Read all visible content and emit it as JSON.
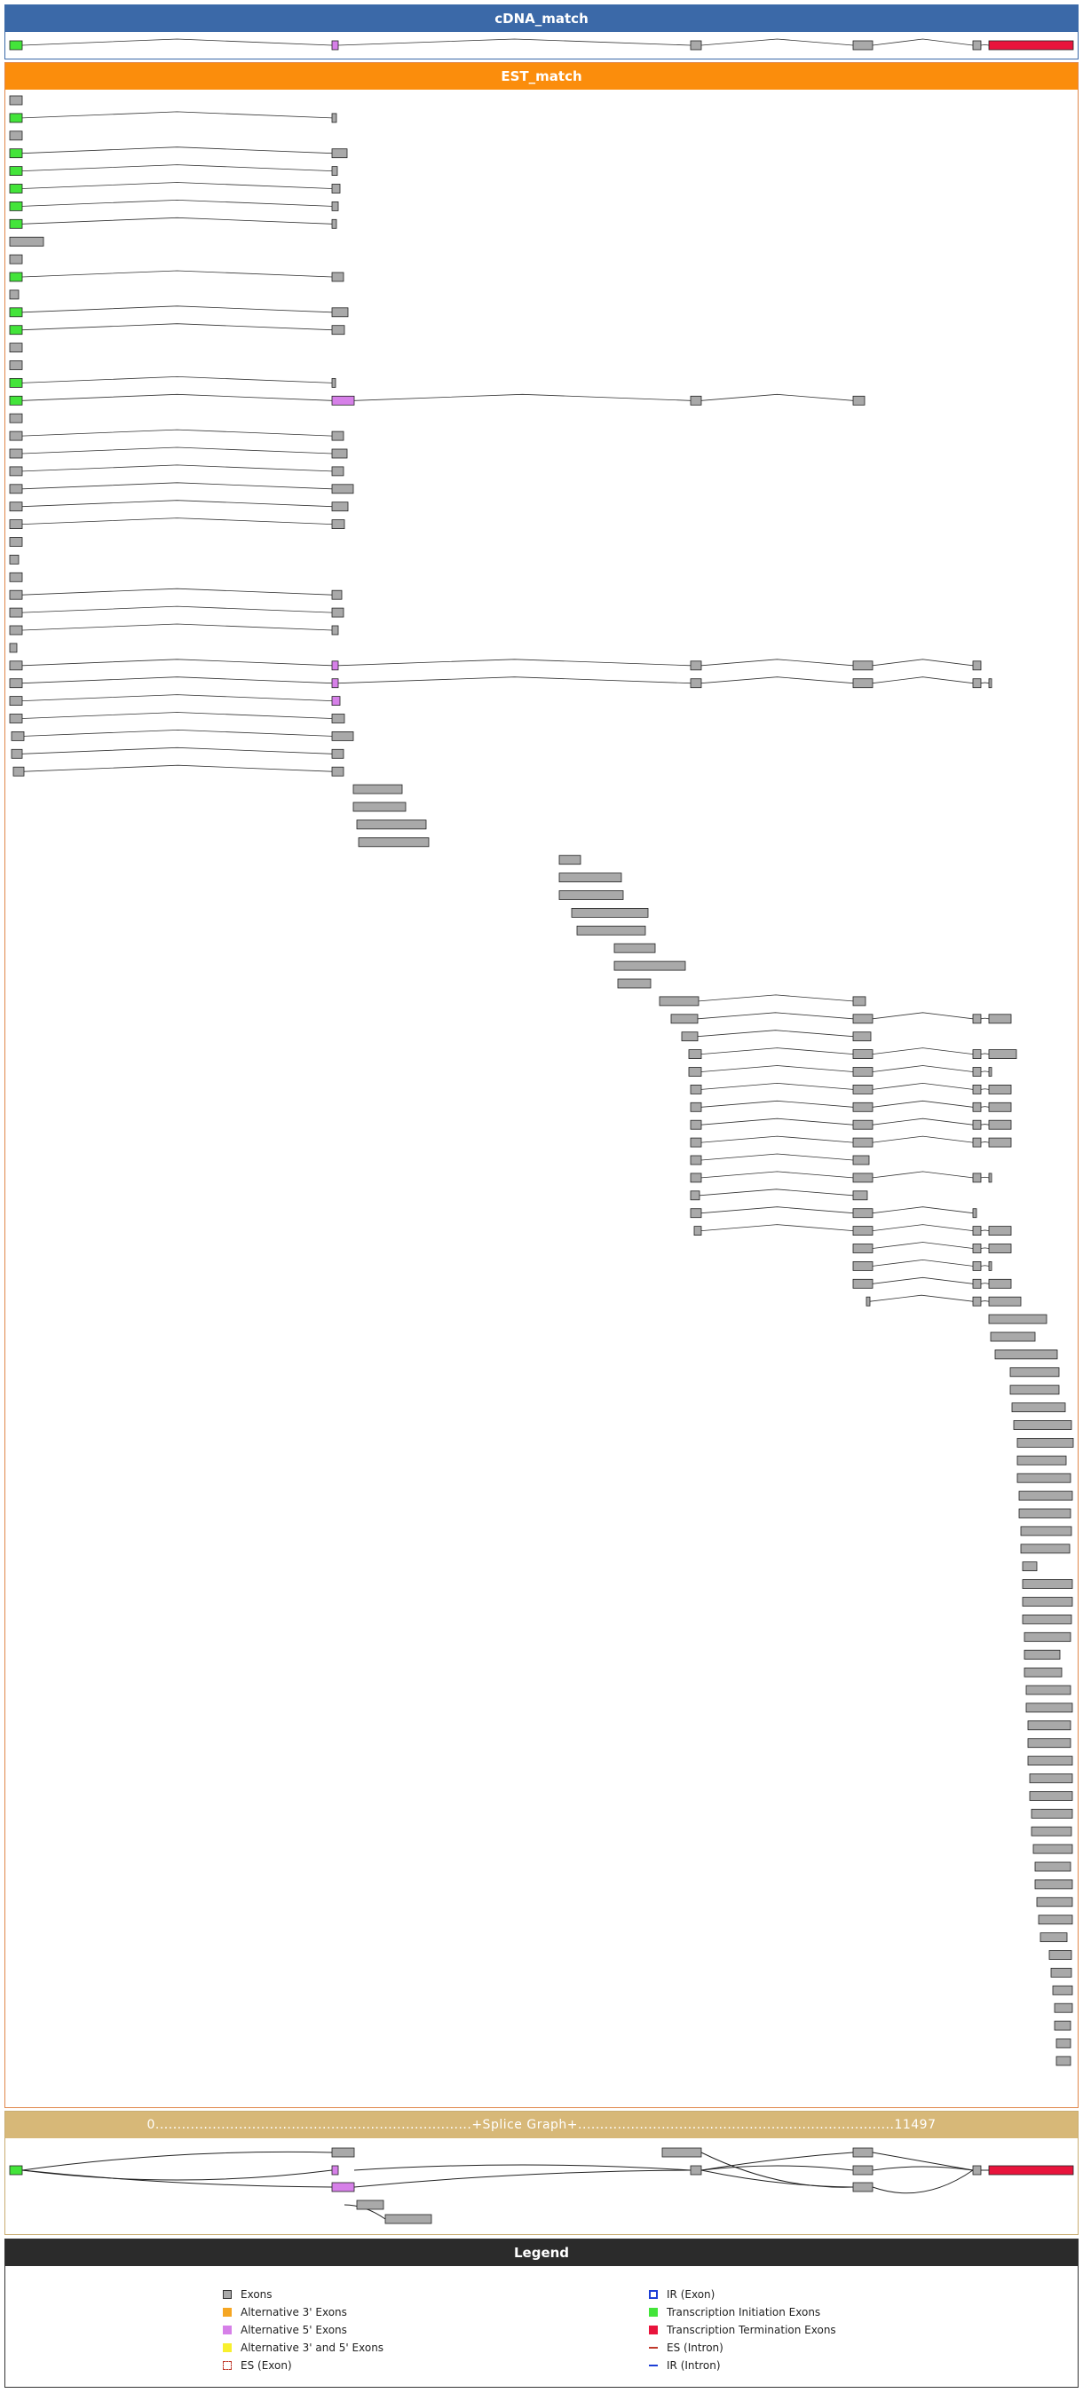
{
  "colors": {
    "exon": "#a9a9a9",
    "alt3": "#f5a623",
    "alt5": "#d680e8",
    "alt35": "#f8f02e",
    "initiation": "#43e43a",
    "termination": "#e8143c",
    "ir": "#1d3fd6",
    "es": "#c0392b"
  },
  "cdna_panel": {
    "title": "cDNA_match"
  },
  "est_panel": {
    "title": "EST_match"
  },
  "splice_panel": {
    "title": "0........................................................................+Splice Graph+........................................................................11497"
  },
  "legend": {
    "title": "Legend",
    "left": [
      {
        "label": "Exons",
        "icon": "exon-swatch"
      },
      {
        "label": "Alternative 3' Exons",
        "icon": "alt3-swatch"
      },
      {
        "label": "Alternative 5' Exons",
        "icon": "alt5-swatch"
      },
      {
        "label": "Alternative 3' and 5' Exons",
        "icon": "alt35-swatch"
      },
      {
        "label": "ES (Exon)",
        "icon": "es-exon-swatch"
      }
    ],
    "right": [
      {
        "label": "IR (Exon)",
        "icon": "ir-exon-swatch"
      },
      {
        "label": "Transcription Initiation Exons",
        "icon": "initiation-swatch"
      },
      {
        "label": "Transcription Termination Exons",
        "icon": "termination-swatch"
      },
      {
        "label": "ES (Intron)",
        "icon": "es-intron-swatch"
      },
      {
        "label": "IR (Intron)",
        "icon": "ir-intron-swatch"
      }
    ]
  }
}
